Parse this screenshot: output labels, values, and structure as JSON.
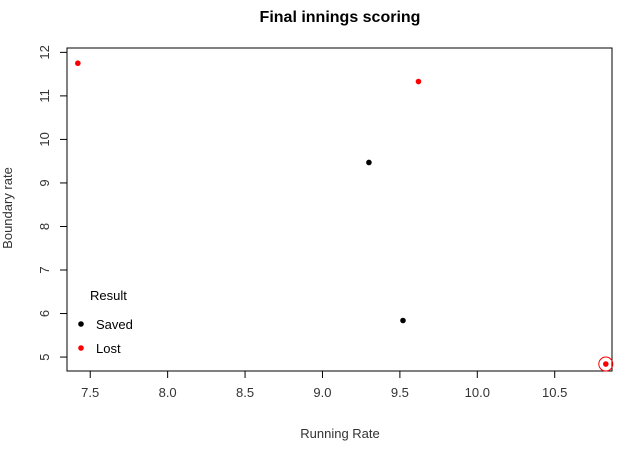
{
  "chart_data": {
    "type": "scatter",
    "title": "Final innings scoring",
    "xlabel": "Running Rate",
    "ylabel": "Boundary rate",
    "xlim": [
      7.35,
      10.87
    ],
    "ylim": [
      4.68,
      12.1
    ],
    "x_ticks": [
      7.5,
      8.0,
      8.5,
      9.0,
      9.5,
      10.0,
      10.5
    ],
    "x_tick_labels": [
      "7.5",
      "8.0",
      "8.5",
      "9.0",
      "9.5",
      "10.0",
      "10.5"
    ],
    "y_ticks": [
      5,
      6,
      7,
      8,
      9,
      10,
      11,
      12
    ],
    "y_tick_labels": [
      "5",
      "6",
      "7",
      "8",
      "9",
      "10",
      "11",
      "12"
    ],
    "grid": false,
    "legend": {
      "title": "Result",
      "position": "bottom-left",
      "entries": [
        {
          "label": "Saved",
          "color": "#000000"
        },
        {
          "label": "Lost",
          "color": "#ff0000"
        }
      ]
    },
    "series": [
      {
        "name": "Saved",
        "color": "#000000",
        "points": [
          {
            "x": 9.3,
            "y": 9.47
          },
          {
            "x": 9.52,
            "y": 5.84
          }
        ]
      },
      {
        "name": "Lost",
        "color": "#ff0000",
        "points": [
          {
            "x": 7.42,
            "y": 11.75
          },
          {
            "x": 9.62,
            "y": 11.33
          },
          {
            "x": 10.83,
            "y": 4.84,
            "highlighted": true
          }
        ]
      }
    ]
  }
}
